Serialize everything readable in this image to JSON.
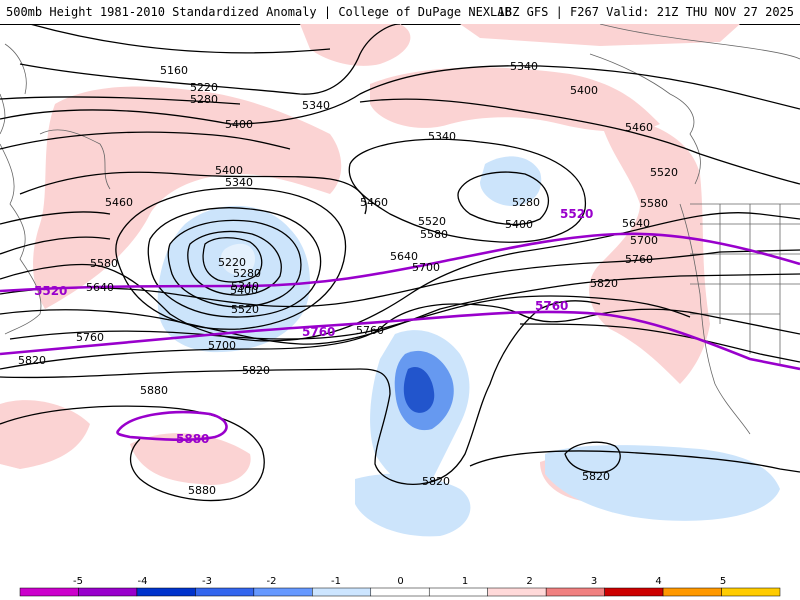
{
  "header": {
    "left": "500mb Height 1981-2010 Standardized Anomaly | College of DuPage NEXLAB",
    "right": "18Z GFS | F267 Valid: 21Z THU NOV 27 2025"
  },
  "contour_labels": {
    "h5160": "5160",
    "h5220": "5220",
    "h5280": "5280",
    "h5340": "5340",
    "h5400": "5400",
    "h5460": "5460",
    "h5520": "5520",
    "h5580": "5580",
    "h5640": "5640",
    "h5700": "5700",
    "h5760": "5760",
    "h5820": "5820",
    "h5880": "5880"
  },
  "highlight_labels": {
    "p5520": "5520",
    "p5760": "5760",
    "p5880": "5880"
  },
  "colorbar": {
    "ticks": [
      "-5",
      "-4",
      "-3",
      "-2",
      "-1",
      "0",
      "1",
      "2",
      "3",
      "4",
      "5"
    ],
    "colors": [
      "#cc00cc",
      "#9900cc",
      "#0033cc",
      "#3366ee",
      "#6699ff",
      "#cce5ff",
      "#ffffff",
      "#ffffff",
      "#ffd9d9",
      "#f08080",
      "#cc0000",
      "#ff9900",
      "#ffcc00"
    ]
  },
  "colors": {
    "neg1": "#cce4fb",
    "neg2": "#6699f0",
    "neg3": "#2255cc",
    "pos1": "#fbd3d3",
    "pos2": "#f29999",
    "purple": "#9900cc"
  }
}
